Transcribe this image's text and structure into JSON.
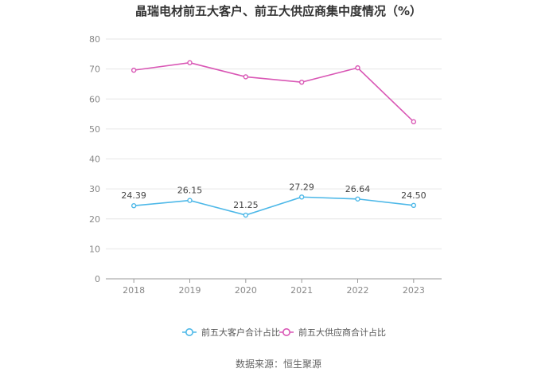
{
  "chart_data": {
    "type": "line",
    "title": "晶瑞电材前五大客户、前五大供应商集中度情况（%）",
    "categories": [
      "2018",
      "2019",
      "2020",
      "2021",
      "2022",
      "2023"
    ],
    "ylim": [
      0,
      80
    ],
    "yticks": [
      0,
      10,
      20,
      30,
      40,
      50,
      60,
      70,
      80
    ],
    "grid": true,
    "legend_position": "bottom",
    "series": [
      {
        "name": "前五大客户合计占比",
        "color": "#4db8e8",
        "values": [
          24.39,
          26.15,
          21.25,
          27.29,
          26.64,
          24.5
        ],
        "labels": [
          "24.39",
          "26.15",
          "21.25",
          "27.29",
          "26.64",
          "24.50"
        ]
      },
      {
        "name": "前五大供应商合计占比",
        "color": "#d957b5",
        "values": [
          69.6,
          72.1,
          67.4,
          65.6,
          70.4,
          52.4
        ],
        "labels": null
      }
    ]
  },
  "source": "数据来源：恒生聚源"
}
